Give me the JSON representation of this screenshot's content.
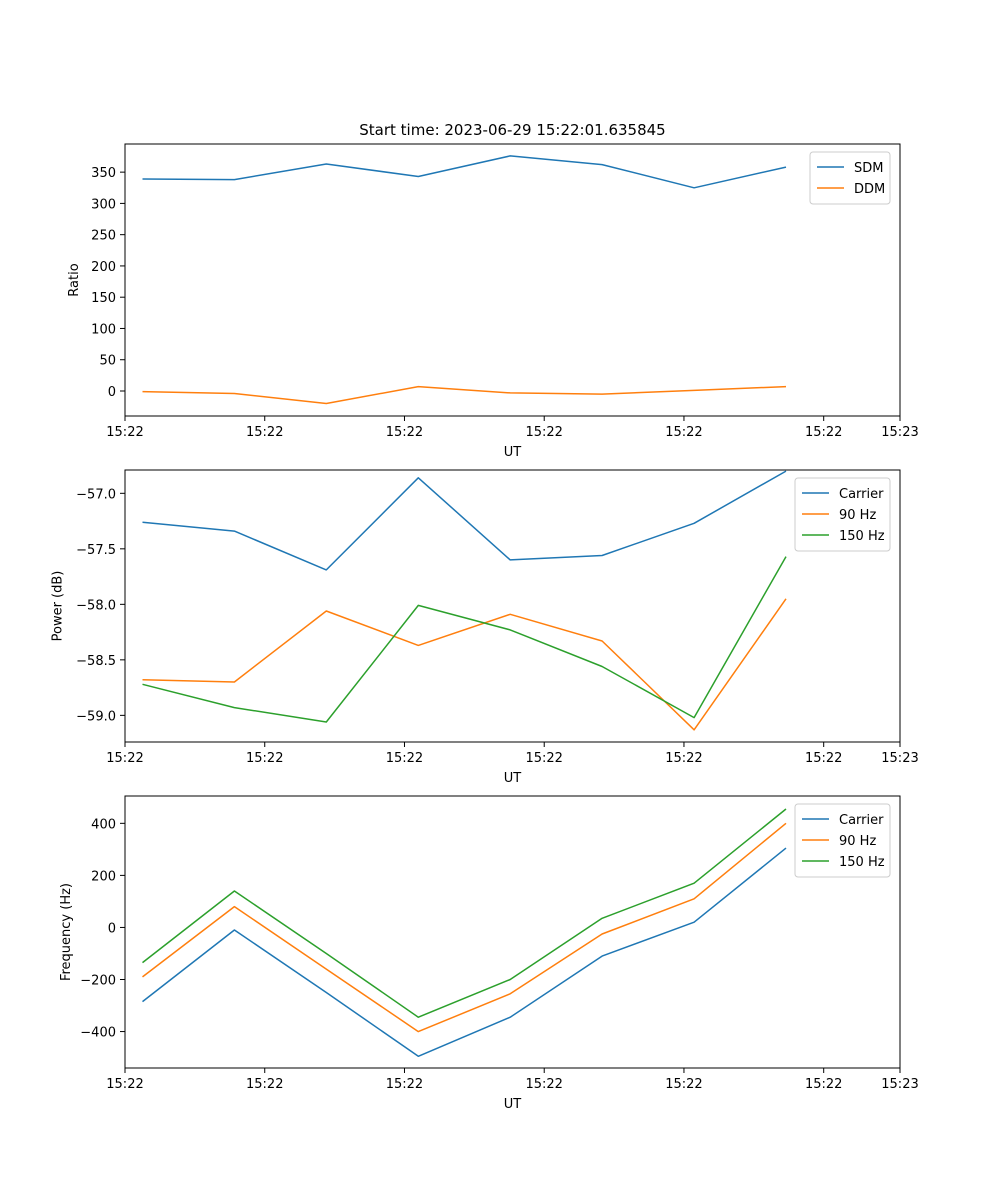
{
  "chart_data": [
    {
      "type": "line",
      "title": "Start time: 2023-06-29 15:22:01.635845",
      "xlabel": "UT",
      "ylabel": "Ratio",
      "x": [
        1,
        2,
        3,
        4,
        5,
        6,
        7,
        8
      ],
      "xlim": [
        0.81,
        9.24
      ],
      "xticks": [
        0.81,
        2.33,
        3.85,
        5.37,
        6.89,
        8.41,
        9.24
      ],
      "xtick_labels": [
        "15:22",
        "15:22",
        "15:22",
        "15:22",
        "15:22",
        "15:22",
        "15:23"
      ],
      "ylim": [
        -40,
        395
      ],
      "yticks": [
        0,
        50,
        100,
        150,
        200,
        250,
        300,
        350
      ],
      "legend": "top-right",
      "series": [
        {
          "name": "SDM",
          "color": "#1f77b4",
          "values": [
            339,
            338,
            363,
            343,
            376,
            362,
            325,
            358
          ]
        },
        {
          "name": "DDM",
          "color": "#ff7f0e",
          "values": [
            -1,
            -4,
            -20,
            7,
            -3,
            -5,
            1,
            7
          ]
        }
      ]
    },
    {
      "type": "line",
      "title": "",
      "xlabel": "UT",
      "ylabel": "Power (dB)",
      "x": [
        1,
        2,
        3,
        4,
        5,
        6,
        7,
        8
      ],
      "xlim": [
        0.81,
        9.24
      ],
      "xticks": [
        0.81,
        2.33,
        3.85,
        5.37,
        6.89,
        8.41,
        9.24
      ],
      "xtick_labels": [
        "15:22",
        "15:22",
        "15:22",
        "15:22",
        "15:22",
        "15:22",
        "15:23"
      ],
      "ylim": [
        -59.24,
        -56.79
      ],
      "yticks": [
        -59.0,
        -58.5,
        -58.0,
        -57.5,
        -57.0
      ],
      "ytick_labels": [
        "−59.0",
        "−58.5",
        "−58.0",
        "−57.5",
        "−57.0"
      ],
      "legend": "top-right",
      "series": [
        {
          "name": "Carrier",
          "color": "#1f77b4",
          "values": [
            -57.26,
            -57.34,
            -57.69,
            -56.86,
            -57.6,
            -57.56,
            -57.27,
            -56.8
          ]
        },
        {
          "name": "90 Hz",
          "color": "#ff7f0e",
          "values": [
            -58.68,
            -58.7,
            -58.06,
            -58.37,
            -58.09,
            -58.33,
            -59.13,
            -57.95
          ]
        },
        {
          "name": "150 Hz",
          "color": "#2ca02c",
          "values": [
            -58.72,
            -58.93,
            -59.06,
            -58.01,
            -58.23,
            -58.56,
            -59.02,
            -57.57
          ]
        }
      ]
    },
    {
      "type": "line",
      "title": "",
      "xlabel": "UT",
      "ylabel": "Frequency (Hz)",
      "x": [
        1,
        2,
        3,
        4,
        5,
        6,
        7,
        8
      ],
      "xlim": [
        0.81,
        9.24
      ],
      "xticks": [
        0.81,
        2.33,
        3.85,
        5.37,
        6.89,
        8.41,
        9.24
      ],
      "xtick_labels": [
        "15:22",
        "15:22",
        "15:22",
        "15:22",
        "15:22",
        "15:22",
        "15:23"
      ],
      "ylim": [
        -540,
        505
      ],
      "yticks": [
        -400,
        -200,
        0,
        200,
        400
      ],
      "ytick_labels": [
        "−400",
        "−200",
        "0",
        "200",
        "400"
      ],
      "legend": "top-right",
      "series": [
        {
          "name": "Carrier",
          "color": "#1f77b4",
          "values": [
            -285,
            -10,
            -250,
            -495,
            -345,
            -110,
            20,
            305
          ]
        },
        {
          "name": "90 Hz",
          "color": "#ff7f0e",
          "values": [
            -190,
            80,
            -160,
            -400,
            -255,
            -25,
            110,
            400
          ]
        },
        {
          "name": "150 Hz",
          "color": "#2ca02c",
          "values": [
            -135,
            140,
            -100,
            -345,
            -200,
            35,
            170,
            455
          ]
        }
      ]
    }
  ]
}
